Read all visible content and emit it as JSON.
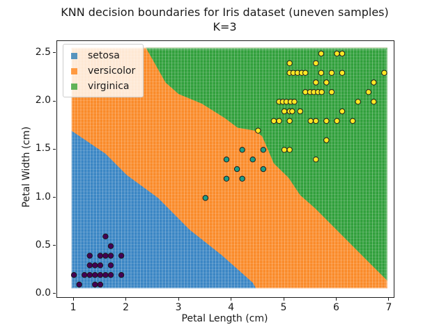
{
  "title": {
    "line1": "KNN decision boundaries for Iris dataset (uneven samples)",
    "line2": "K=3"
  },
  "axes": {
    "xlabel": "Petal Length (cm)",
    "ylabel": "Petal Width (cm)",
    "xtick_labels": [
      "1",
      "2",
      "3",
      "4",
      "5",
      "6",
      "7"
    ],
    "xtick_values": [
      1,
      2,
      3,
      4,
      5,
      6,
      7
    ],
    "ytick_labels": [
      "0.0",
      "0.5",
      "1.0",
      "1.5",
      "2.0",
      "2.5"
    ],
    "ytick_values": [
      0.0,
      0.5,
      1.0,
      1.5,
      2.0,
      2.5
    ]
  },
  "legend": {
    "position": "upper left",
    "entries": [
      {
        "label": "setosa",
        "swatch": "rgba(31,119,180,0.75)"
      },
      {
        "label": "versicolor",
        "swatch": "rgba(255,127,14,0.75)"
      },
      {
        "label": "virginica",
        "swatch": "rgba(44,160,44,0.75)"
      }
    ]
  },
  "chart_data": {
    "type": "scatter",
    "title": "KNN decision boundaries for Iris dataset (uneven samples)",
    "subtitle": "K=3",
    "k": 3,
    "xlabel": "Petal Length (cm)",
    "ylabel": "Petal Width (cm)",
    "xlim": [
      0.68,
      7.08
    ],
    "ylim": [
      -0.03,
      2.63
    ],
    "grid": false,
    "legend_position": "upper left",
    "mesh_extent": {
      "x": [
        0.95,
        6.96
      ],
      "y": [
        0.06,
        2.56
      ]
    },
    "regions": [
      {
        "name": "versicolor",
        "color": "#fa8b2a",
        "note": "background rectangle, fills everything between setosa and virginica polygons",
        "polygon": [
          [
            0.95,
            2.56
          ],
          [
            6.96,
            2.56
          ],
          [
            6.96,
            0.06
          ],
          [
            0.95,
            0.06
          ]
        ]
      },
      {
        "name": "setosa",
        "color": "#3b86c4",
        "polygon": [
          [
            0.95,
            1.7
          ],
          [
            1.3,
            1.57
          ],
          [
            1.6,
            1.46
          ],
          [
            2.0,
            1.24
          ],
          [
            2.6,
            1.0
          ],
          [
            3.2,
            0.67
          ],
          [
            3.8,
            0.41
          ],
          [
            4.4,
            0.12
          ],
          [
            4.46,
            0.06
          ],
          [
            0.95,
            0.06
          ]
        ]
      },
      {
        "name": "virginica",
        "color": "#31a03c",
        "polygon": [
          [
            2.37,
            2.56
          ],
          [
            6.96,
            2.56
          ],
          [
            6.96,
            0.14
          ],
          [
            6.63,
            0.32
          ],
          [
            5.59,
            0.89
          ],
          [
            5.3,
            1.03
          ],
          [
            5.08,
            1.21
          ],
          [
            4.8,
            1.36
          ],
          [
            4.69,
            1.5
          ],
          [
            4.58,
            1.64
          ],
          [
            4.44,
            1.7
          ],
          [
            4.11,
            1.73
          ],
          [
            3.87,
            1.83
          ],
          [
            3.43,
            1.98
          ],
          [
            2.99,
            2.08
          ],
          [
            2.74,
            2.2
          ]
        ]
      }
    ],
    "series": [
      {
        "name": "setosa samples",
        "marker_color": "#440154",
        "marker_edge": "#1a1a1a",
        "points": [
          [
            1.6,
            0.6
          ],
          [
            1.7,
            0.5
          ],
          [
            1.3,
            0.4
          ],
          [
            1.5,
            0.4
          ],
          [
            1.6,
            0.4
          ],
          [
            1.7,
            0.4
          ],
          [
            1.9,
            0.4
          ],
          [
            1.3,
            0.3
          ],
          [
            1.4,
            0.3
          ],
          [
            1.5,
            0.3
          ],
          [
            1.7,
            0.3
          ],
          [
            1.0,
            0.2
          ],
          [
            1.2,
            0.2
          ],
          [
            1.3,
            0.2
          ],
          [
            1.4,
            0.2
          ],
          [
            1.5,
            0.2
          ],
          [
            1.6,
            0.2
          ],
          [
            1.7,
            0.2
          ],
          [
            1.9,
            0.2
          ],
          [
            1.1,
            0.1
          ],
          [
            1.4,
            0.1
          ],
          [
            1.5,
            0.1
          ]
        ]
      },
      {
        "name": "versicolor samples",
        "marker_color": "#1f9e89",
        "marker_edge": "#1a1a1a",
        "points": [
          [
            3.5,
            1.0
          ],
          [
            3.9,
            1.2
          ],
          [
            4.2,
            1.2
          ],
          [
            4.1,
            1.3
          ],
          [
            4.6,
            1.3
          ],
          [
            3.9,
            1.4
          ],
          [
            4.4,
            1.4
          ],
          [
            4.2,
            1.5
          ],
          [
            4.6,
            1.5
          ]
        ]
      },
      {
        "name": "virginica samples",
        "marker_color": "#fde725",
        "marker_edge": "#1a1a1a",
        "points": [
          [
            5.6,
            1.4
          ],
          [
            5.0,
            1.5
          ],
          [
            5.1,
            1.5
          ],
          [
            5.8,
            1.6
          ],
          [
            4.5,
            1.7
          ],
          [
            4.8,
            1.8
          ],
          [
            4.9,
            1.8
          ],
          [
            5.1,
            1.8
          ],
          [
            5.5,
            1.8
          ],
          [
            5.6,
            1.8
          ],
          [
            5.8,
            1.8
          ],
          [
            6.0,
            1.8
          ],
          [
            6.3,
            1.8
          ],
          [
            5.0,
            1.9
          ],
          [
            5.1,
            1.9
          ],
          [
            5.15,
            1.9
          ],
          [
            5.3,
            1.9
          ],
          [
            6.1,
            1.9
          ],
          [
            4.9,
            2.0
          ],
          [
            4.97,
            2.0
          ],
          [
            5.04,
            2.0
          ],
          [
            5.12,
            2.0
          ],
          [
            5.19,
            2.0
          ],
          [
            6.4,
            2.0
          ],
          [
            6.7,
            2.0
          ],
          [
            5.4,
            2.1
          ],
          [
            5.49,
            2.1
          ],
          [
            5.56,
            2.1
          ],
          [
            5.64,
            2.1
          ],
          [
            5.71,
            2.1
          ],
          [
            5.9,
            2.1
          ],
          [
            6.6,
            2.1
          ],
          [
            5.6,
            2.2
          ],
          [
            5.8,
            2.2
          ],
          [
            6.7,
            2.2
          ],
          [
            5.1,
            2.3
          ],
          [
            5.17,
            2.3
          ],
          [
            5.25,
            2.3
          ],
          [
            5.33,
            2.3
          ],
          [
            5.4,
            2.3
          ],
          [
            5.7,
            2.3
          ],
          [
            5.9,
            2.3
          ],
          [
            6.1,
            2.3
          ],
          [
            6.9,
            2.3
          ],
          [
            5.1,
            2.4
          ],
          [
            5.6,
            2.4
          ],
          [
            5.7,
            2.5
          ],
          [
            6.0,
            2.5
          ],
          [
            6.1,
            2.5
          ]
        ]
      }
    ]
  }
}
